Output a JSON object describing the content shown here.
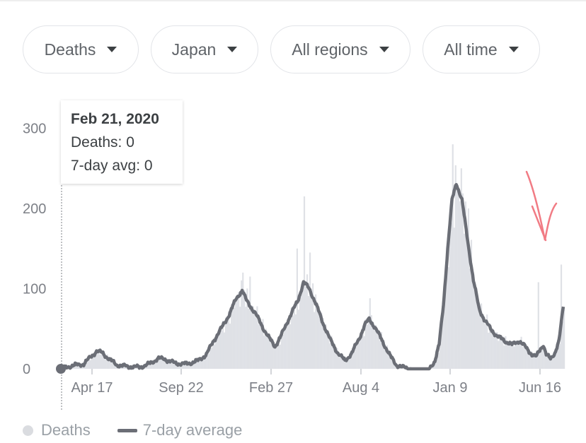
{
  "filters": [
    {
      "label": "Deaths"
    },
    {
      "label": "Japan"
    },
    {
      "label": "All regions"
    },
    {
      "label": "All time"
    }
  ],
  "tooltip": {
    "date": "Feb 21, 2020",
    "deaths": "Deaths: 0",
    "avg": "7-day avg: 0"
  },
  "legend": {
    "deaths": "Deaths",
    "avg": "7-day average"
  },
  "colors": {
    "bars": "#dfe1e6",
    "avg_line": "#6b6e76",
    "annotation_arrow": "#f17b84"
  },
  "chart_data": {
    "type": "bar",
    "x_tick_labels": [
      "Apr 17",
      "Sep 22",
      "Feb 27",
      "Aug 4",
      "Jan 9",
      "Jun 16"
    ],
    "y_tick_labels": [
      "0",
      "100",
      "200",
      "300"
    ],
    "ylim": [
      0,
      330
    ],
    "legend_placement": "bottom-left",
    "grid": false,
    "series": [
      {
        "name": "7-day average",
        "type": "line",
        "anchors": [
          [
            0,
            0
          ],
          [
            16,
            4
          ],
          [
            32,
            6
          ],
          [
            42,
            15
          ],
          [
            50,
            22
          ],
          [
            58,
            20
          ],
          [
            68,
            12
          ],
          [
            78,
            5
          ],
          [
            92,
            3
          ],
          [
            110,
            2
          ],
          [
            124,
            6
          ],
          [
            136,
            13
          ],
          [
            146,
            12
          ],
          [
            160,
            7
          ],
          [
            176,
            6
          ],
          [
            192,
            10
          ],
          [
            204,
            18
          ],
          [
            214,
            35
          ],
          [
            226,
            52
          ],
          [
            236,
            68
          ],
          [
            246,
            88
          ],
          [
            254,
            98
          ],
          [
            260,
            85
          ],
          [
            272,
            70
          ],
          [
            284,
            50
          ],
          [
            292,
            38
          ],
          [
            300,
            28
          ],
          [
            308,
            40
          ],
          [
            318,
            60
          ],
          [
            332,
            85
          ],
          [
            340,
            108
          ],
          [
            348,
            100
          ],
          [
            356,
            84
          ],
          [
            366,
            60
          ],
          [
            378,
            35
          ],
          [
            388,
            20
          ],
          [
            398,
            10
          ],
          [
            408,
            20
          ],
          [
            418,
            38
          ],
          [
            426,
            55
          ],
          [
            432,
            62
          ],
          [
            440,
            52
          ],
          [
            452,
            32
          ],
          [
            462,
            15
          ],
          [
            470,
            5
          ],
          [
            478,
            2
          ],
          [
            492,
            0
          ],
          [
            516,
            0
          ],
          [
            524,
            10
          ],
          [
            530,
            30
          ],
          [
            536,
            80
          ],
          [
            542,
            150
          ],
          [
            548,
            210
          ],
          [
            554,
            232
          ],
          [
            562,
            210
          ],
          [
            570,
            160
          ],
          [
            578,
            110
          ],
          [
            586,
            75
          ],
          [
            594,
            60
          ],
          [
            602,
            50
          ],
          [
            612,
            40
          ],
          [
            622,
            35
          ],
          [
            632,
            30
          ],
          [
            642,
            35
          ],
          [
            650,
            28
          ],
          [
            660,
            18
          ],
          [
            666,
            15
          ],
          [
            672,
            25
          ],
          [
            676,
            30
          ],
          [
            680,
            18
          ],
          [
            686,
            12
          ],
          [
            692,
            20
          ],
          [
            698,
            35
          ],
          [
            704,
            78
          ]
        ]
      },
      {
        "name": "Deaths",
        "type": "bar",
        "spikes": [
          [
            254,
            120
          ],
          [
            264,
            115
          ],
          [
            330,
            150
          ],
          [
            340,
            215
          ],
          [
            348,
            145
          ],
          [
            432,
            88
          ],
          [
            548,
            280
          ],
          [
            553,
            325
          ],
          [
            560,
            250
          ],
          [
            570,
            200
          ],
          [
            582,
            95
          ],
          [
            665,
            45
          ],
          [
            668,
            108
          ],
          [
            700,
            130
          ],
          [
            703,
            100
          ]
        ]
      }
    ]
  }
}
